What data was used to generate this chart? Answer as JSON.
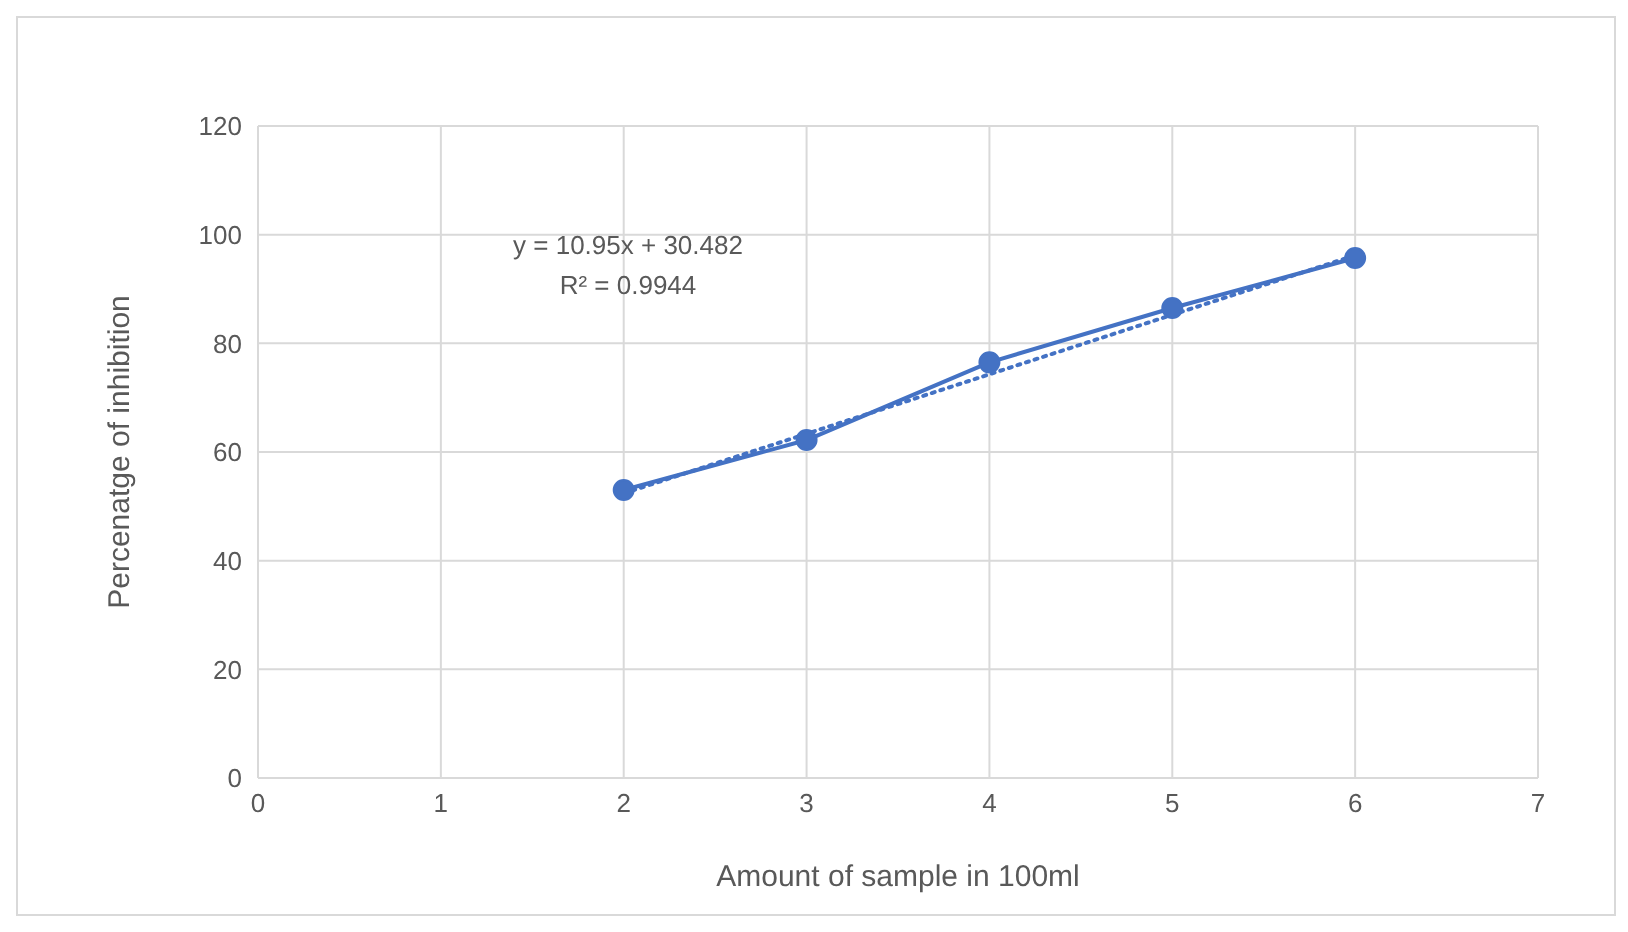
{
  "chart_data": {
    "type": "line",
    "xlabel": "Amount of sample in 100ml",
    "ylabel": "Percenatge of inhibition",
    "x": [
      2,
      3,
      4,
      5,
      6
    ],
    "series": [
      {
        "color": "#4472c4",
        "values": [
          53,
          62.2,
          76.5,
          86.5,
          95.7
        ],
        "marker": "circle",
        "line_style": "solid"
      },
      {
        "type": "line",
        "color": "#4472c4",
        "x": [
          2,
          6
        ],
        "values": [
          52.4,
          96.2
        ],
        "marker": "none",
        "line_style": "dotted"
      }
    ],
    "annotations": [
      "y = 10.95x + 30.482",
      "R² = 0.9944"
    ],
    "xlim": [
      0,
      7
    ],
    "xticks": [
      0,
      1,
      2,
      3,
      4,
      5,
      6,
      7
    ],
    "ylim": [
      0,
      120
    ],
    "yticks": [
      0,
      20,
      40,
      60,
      80,
      100,
      120
    ],
    "grid": true
  }
}
